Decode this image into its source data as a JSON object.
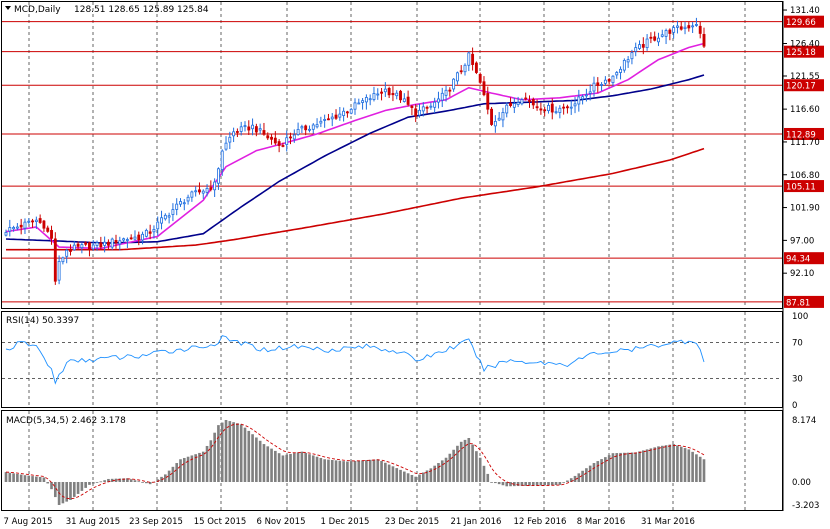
{
  "header": {
    "symbol_label": "MCD,Daily",
    "ohlc_text": "128.51 128.65 125.89 125.84"
  },
  "colors": {
    "frame": "#000000",
    "grid": "#000000",
    "bull": "#1e6ee0",
    "bear": "#cc0000",
    "ma_fast": "#e020e0",
    "ma_mid": "#00008b",
    "ma_slow": "#cc0000",
    "hline": "#cc0000",
    "tag_bg": "#cc0000",
    "rsi_line": "#1e90ff",
    "macd_hist": "#808080",
    "macd_signal": "#cc0000"
  },
  "price_axis": {
    "ticks": [
      "131.40",
      "126.40",
      "121.55",
      "116.60",
      "111.70",
      "106.80",
      "101.90",
      "97.00",
      "92.10"
    ],
    "tick_values": [
      131.4,
      126.4,
      121.55,
      116.6,
      111.7,
      106.8,
      101.9,
      97.0,
      92.1
    ],
    "ylim": [
      86.9,
      132.6
    ]
  },
  "levels": [
    {
      "value": 129.66,
      "label": "129.66"
    },
    {
      "value": 125.18,
      "label": "125.18"
    },
    {
      "value": 120.17,
      "label": "120.17"
    },
    {
      "value": 112.89,
      "label": "112.89"
    },
    {
      "value": 105.11,
      "label": "105.11"
    },
    {
      "value": 94.34,
      "label": "94.34"
    },
    {
      "value": 87.81,
      "label": "87.81"
    }
  ],
  "x_axis": {
    "labels": [
      "7 Aug 2015",
      "31 Aug 2015",
      "23 Sep 2015",
      "15 Oct 2015",
      "6 Nov 2015",
      "1 Dec 2015",
      "23 Dec 2015",
      "21 Jan 2016",
      "12 Feb 2016",
      "8 Mar 2016",
      "31 Mar 2016"
    ]
  },
  "rsi": {
    "title": "RSI(14) 50.3397",
    "ticks": [
      "100",
      "70",
      "30",
      "0"
    ],
    "tick_values": [
      100,
      70,
      30,
      0
    ],
    "levels": [
      70,
      30
    ]
  },
  "macd": {
    "title": "MACD(5,34,5) 2.462 3.178",
    "ticks": [
      "8.174",
      "0.00",
      "-3.203"
    ],
    "tick_values": [
      8.174,
      0,
      -3.203
    ]
  },
  "chart_data": {
    "type": "candlestick",
    "series_hint": "daily bars, 7 Aug 2015 - Apr 2016",
    "price_anchors": [
      [
        0,
        98.5
      ],
      [
        5,
        99.4
      ],
      [
        8,
        100.0
      ],
      [
        10,
        99.3
      ],
      [
        12,
        97.2
      ],
      [
        13,
        91.0
      ],
      [
        14,
        93.5
      ],
      [
        16,
        95.6
      ],
      [
        20,
        96.0
      ],
      [
        25,
        96.3
      ],
      [
        30,
        97.1
      ],
      [
        35,
        97.5
      ],
      [
        38,
        98.3
      ],
      [
        42,
        100.6
      ],
      [
        45,
        102.1
      ],
      [
        48,
        103.5
      ],
      [
        52,
        104.5
      ],
      [
        55,
        105.3
      ],
      [
        57,
        110.5
      ],
      [
        60,
        113.2
      ],
      [
        65,
        114.0
      ],
      [
        68,
        112.8
      ],
      [
        72,
        111.2
      ],
      [
        76,
        113.0
      ],
      [
        80,
        114.0
      ],
      [
        85,
        115.0
      ],
      [
        90,
        116.5
      ],
      [
        95,
        118.0
      ],
      [
        100,
        119.5
      ],
      [
        104,
        118.3
      ],
      [
        108,
        116.0
      ],
      [
        112,
        117.0
      ],
      [
        116,
        119.0
      ],
      [
        120,
        122.5
      ],
      [
        122,
        124.5
      ],
      [
        125,
        120.5
      ],
      [
        128,
        114.5
      ],
      [
        132,
        116.8
      ],
      [
        136,
        118.5
      ],
      [
        140,
        117.0
      ],
      [
        145,
        116.5
      ],
      [
        150,
        117.5
      ],
      [
        155,
        120.0
      ],
      [
        160,
        121.5
      ],
      [
        165,
        125.0
      ],
      [
        170,
        127.0
      ],
      [
        175,
        128.3
      ],
      [
        180,
        129.0
      ],
      [
        182,
        129.5
      ],
      [
        184,
        125.84
      ]
    ],
    "rsi_anchors": [
      [
        0,
        62
      ],
      [
        4,
        70
      ],
      [
        8,
        66
      ],
      [
        12,
        40
      ],
      [
        13,
        25
      ],
      [
        16,
        48
      ],
      [
        25,
        52
      ],
      [
        35,
        55
      ],
      [
        45,
        62
      ],
      [
        55,
        68
      ],
      [
        57,
        75
      ],
      [
        60,
        72
      ],
      [
        68,
        62
      ],
      [
        76,
        66
      ],
      [
        85,
        62
      ],
      [
        95,
        66
      ],
      [
        104,
        60
      ],
      [
        108,
        50
      ],
      [
        116,
        62
      ],
      [
        122,
        72
      ],
      [
        126,
        40
      ],
      [
        132,
        50
      ],
      [
        140,
        48
      ],
      [
        148,
        46
      ],
      [
        155,
        58
      ],
      [
        165,
        62
      ],
      [
        175,
        70
      ],
      [
        180,
        72
      ],
      [
        182,
        72
      ],
      [
        184,
        50
      ]
    ],
    "macd_anchors": [
      [
        0,
        1.3
      ],
      [
        5,
        0.9
      ],
      [
        10,
        0.6
      ],
      [
        12,
        -1.0
      ],
      [
        14,
        -3.2
      ],
      [
        17,
        -2.5
      ],
      [
        22,
        -0.4
      ],
      [
        27,
        0.4
      ],
      [
        32,
        0.5
      ],
      [
        38,
        -0.3
      ],
      [
        42,
        1.0
      ],
      [
        46,
        3.0
      ],
      [
        52,
        4.0
      ],
      [
        54,
        5.5
      ],
      [
        56,
        7.5
      ],
      [
        58,
        8.174
      ],
      [
        62,
        7.6
      ],
      [
        68,
        5.0
      ],
      [
        73,
        3.5
      ],
      [
        78,
        4.0
      ],
      [
        84,
        3.0
      ],
      [
        90,
        2.7
      ],
      [
        98,
        3.0
      ],
      [
        104,
        1.6
      ],
      [
        108,
        0.7
      ],
      [
        112,
        1.8
      ],
      [
        116,
        3.2
      ],
      [
        120,
        5.3
      ],
      [
        122,
        5.8
      ],
      [
        125,
        3.2
      ],
      [
        128,
        0.0
      ],
      [
        132,
        -0.6
      ],
      [
        140,
        -0.5
      ],
      [
        146,
        -0.4
      ],
      [
        150,
        0.8
      ],
      [
        155,
        2.5
      ],
      [
        160,
        3.8
      ],
      [
        166,
        3.9
      ],
      [
        172,
        4.7
      ],
      [
        176,
        5.0
      ],
      [
        180,
        4.3
      ],
      [
        184,
        3.0
      ]
    ],
    "moving_averages": [
      {
        "name": "fast",
        "anchors": [
          [
            0,
            98.3
          ],
          [
            8,
            99.0
          ],
          [
            14,
            96.0
          ],
          [
            25,
            95.8
          ],
          [
            40,
            97.6
          ],
          [
            52,
            103.0
          ],
          [
            58,
            108.0
          ],
          [
            66,
            110.4
          ],
          [
            72,
            111.3
          ],
          [
            82,
            112.9
          ],
          [
            92,
            114.9
          ],
          [
            100,
            116.4
          ],
          [
            108,
            117.3
          ],
          [
            116,
            118.0
          ],
          [
            122,
            119.8
          ],
          [
            128,
            119.0
          ],
          [
            136,
            118.0
          ],
          [
            146,
            118.3
          ],
          [
            156,
            119.0
          ],
          [
            164,
            121.0
          ],
          [
            172,
            124.0
          ],
          [
            180,
            125.8
          ],
          [
            184,
            126.4
          ]
        ]
      },
      {
        "name": "mid",
        "anchors": [
          [
            0,
            97.2
          ],
          [
            14,
            96.9
          ],
          [
            26,
            96.6
          ],
          [
            40,
            96.8
          ],
          [
            52,
            98.0
          ],
          [
            62,
            102.0
          ],
          [
            72,
            105.8
          ],
          [
            84,
            109.6
          ],
          [
            96,
            113.0
          ],
          [
            106,
            115.4
          ],
          [
            116,
            116.3
          ],
          [
            126,
            117.4
          ],
          [
            136,
            117.6
          ],
          [
            150,
            117.9
          ],
          [
            160,
            118.6
          ],
          [
            170,
            119.6
          ],
          [
            180,
            121.0
          ],
          [
            184,
            121.7
          ]
        ]
      },
      {
        "name": "slow",
        "anchors": [
          [
            0,
            95.6
          ],
          [
            30,
            95.6
          ],
          [
            50,
            96.3
          ],
          [
            60,
            97.1
          ],
          [
            80,
            99.0
          ],
          [
            100,
            101.0
          ],
          [
            120,
            103.3
          ],
          [
            140,
            105.0
          ],
          [
            160,
            107.0
          ],
          [
            175,
            109.0
          ],
          [
            184,
            110.7
          ]
        ]
      }
    ],
    "ylim": [
      86.9,
      132.6
    ]
  }
}
